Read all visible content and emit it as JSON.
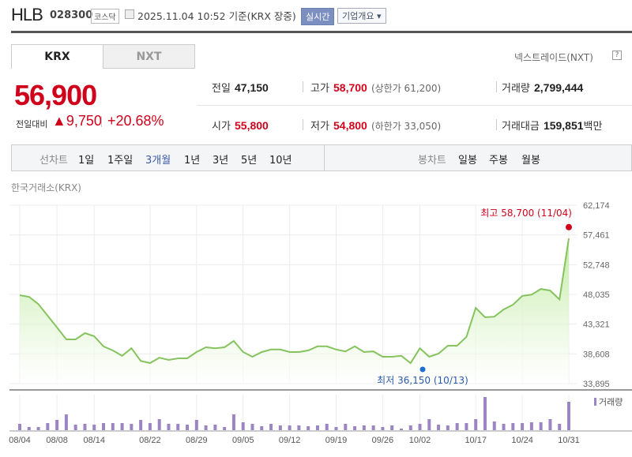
{
  "header": {
    "name": "HLB",
    "code": "028300",
    "market": "코스닥",
    "datetime": "2025.11.04 10:52",
    "basis": "기준(KRX 장중)",
    "realtime": "실시간",
    "corp_menu": "기업개요 ▾"
  },
  "tabs": [
    {
      "label": "KRX",
      "active": true
    },
    {
      "label": "NXT",
      "active": false
    }
  ],
  "nxt_link": "넥스트레이드(NXT)",
  "help": "?",
  "quote": {
    "price": "56,900",
    "change_label": "전일대비",
    "change": "▲9,750",
    "change_pct": "+20.68%",
    "prev_label": "전일",
    "prev": "47,150",
    "open_label": "시가",
    "open": "55,800",
    "high_label": "고가",
    "high": "58,700",
    "upper_limit": "(상한가 61,200)",
    "low_label": "저가",
    "low": "54,800",
    "lower_limit": "(하한가 33,050)",
    "volume_label": "거래량",
    "volume": "2,799,444",
    "amount_label": "거래대금",
    "amount": "159,851",
    "amount_unit": "백만"
  },
  "periods": {
    "line_label": "선차트",
    "items": [
      "1일",
      "1주일",
      "3개월",
      "1년",
      "3년",
      "5년",
      "10년"
    ],
    "active": "3개월",
    "candle_label": "봉차트",
    "candle_items": [
      "일봉",
      "주봉",
      "월봉"
    ]
  },
  "source": "한국거래소(KRX)",
  "colors": {
    "up": "#d0021b",
    "line": "#86c35f",
    "volume": "#9b86c3",
    "low_marker": "#1f6fd0"
  },
  "chart_data": {
    "type": "area",
    "ylim": [
      33895,
      62174
    ],
    "y_ticks": [
      "62,174",
      "57,461",
      "52,748",
      "48,035",
      "43,321",
      "38,608",
      "33,895"
    ],
    "x_ticks": [
      "08/04",
      "08/08",
      "08/14",
      "08/22",
      "08/29",
      "09/05",
      "09/12",
      "09/19",
      "09/26",
      "10/02",
      "10/17",
      "10/24",
      "10/31"
    ],
    "grid": true,
    "series": [
      {
        "values": [
          47900,
          47650,
          46500,
          44650,
          42800,
          40900,
          40900,
          41900,
          41400,
          39800,
          39150,
          38300,
          39500,
          37500,
          37150,
          38000,
          37650,
          37900,
          37900,
          38900,
          39650,
          39500,
          39650,
          40650,
          38900,
          38150,
          38900,
          39300,
          39300,
          38900,
          38900,
          39150,
          39800,
          39800,
          39300,
          39000,
          39800,
          38900,
          39000,
          38150,
          38150,
          38300,
          37150,
          39500,
          38150,
          38650,
          39900,
          39900,
          41300,
          45900,
          44400,
          44500,
          45650,
          46400,
          47800,
          48000,
          48900,
          48650,
          47250,
          56900
        ]
      }
    ],
    "high_annotation": "최고 58,700 (11/04)",
    "high_value": 58700,
    "low_annotation": "최저 36,150 (10/13)",
    "low_value": 36150,
    "volume_label": "거래량",
    "volume_relative": [
      8,
      4,
      4,
      9,
      13,
      20,
      7,
      8,
      7,
      9,
      9,
      9,
      8,
      13,
      9,
      14,
      8,
      8,
      7,
      13,
      6,
      7,
      4,
      20,
      10,
      8,
      5,
      8,
      6,
      6,
      6,
      5,
      6,
      8,
      4,
      8,
      5,
      6,
      6,
      4,
      6,
      2,
      6,
      8,
      14,
      7,
      6,
      9,
      9,
      14,
      42,
      11,
      8,
      9,
      9,
      10,
      10,
      14,
      8,
      36
    ]
  }
}
